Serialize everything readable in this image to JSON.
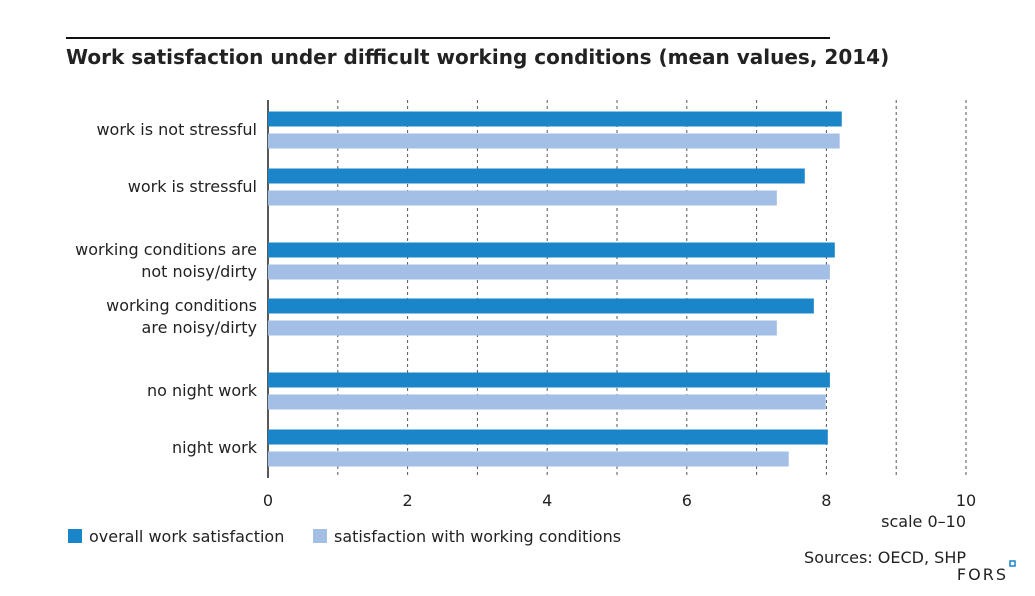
{
  "chart_data": {
    "type": "hbar",
    "title": "Work satisfaction under difficult working conditions (mean values, 2014)",
    "categories": [
      "work is not stressful",
      "work is stressful",
      "working conditions are\nnot noisy/dirty",
      "working conditions\nare noisy/dirty",
      "no night work",
      "night work"
    ],
    "series": [
      {
        "name": "overall work satisfaction",
        "color": "#1a85c8",
        "values": [
          8.22,
          7.69,
          8.12,
          7.82,
          8.05,
          8.02
        ]
      },
      {
        "name": "satisfaction with working conditions",
        "color": "#a3bfe6",
        "values": [
          8.19,
          7.29,
          8.05,
          7.29,
          7.99,
          7.46
        ]
      }
    ],
    "xlim": [
      0,
      10
    ],
    "xticks": [
      0,
      2,
      4,
      6,
      8,
      10
    ],
    "xminorticks": [
      1,
      3,
      5,
      7,
      9
    ],
    "grid": true,
    "xlabel": "scale 0–10",
    "source": "Sources: OECD, SHP",
    "logo": "FORS"
  }
}
